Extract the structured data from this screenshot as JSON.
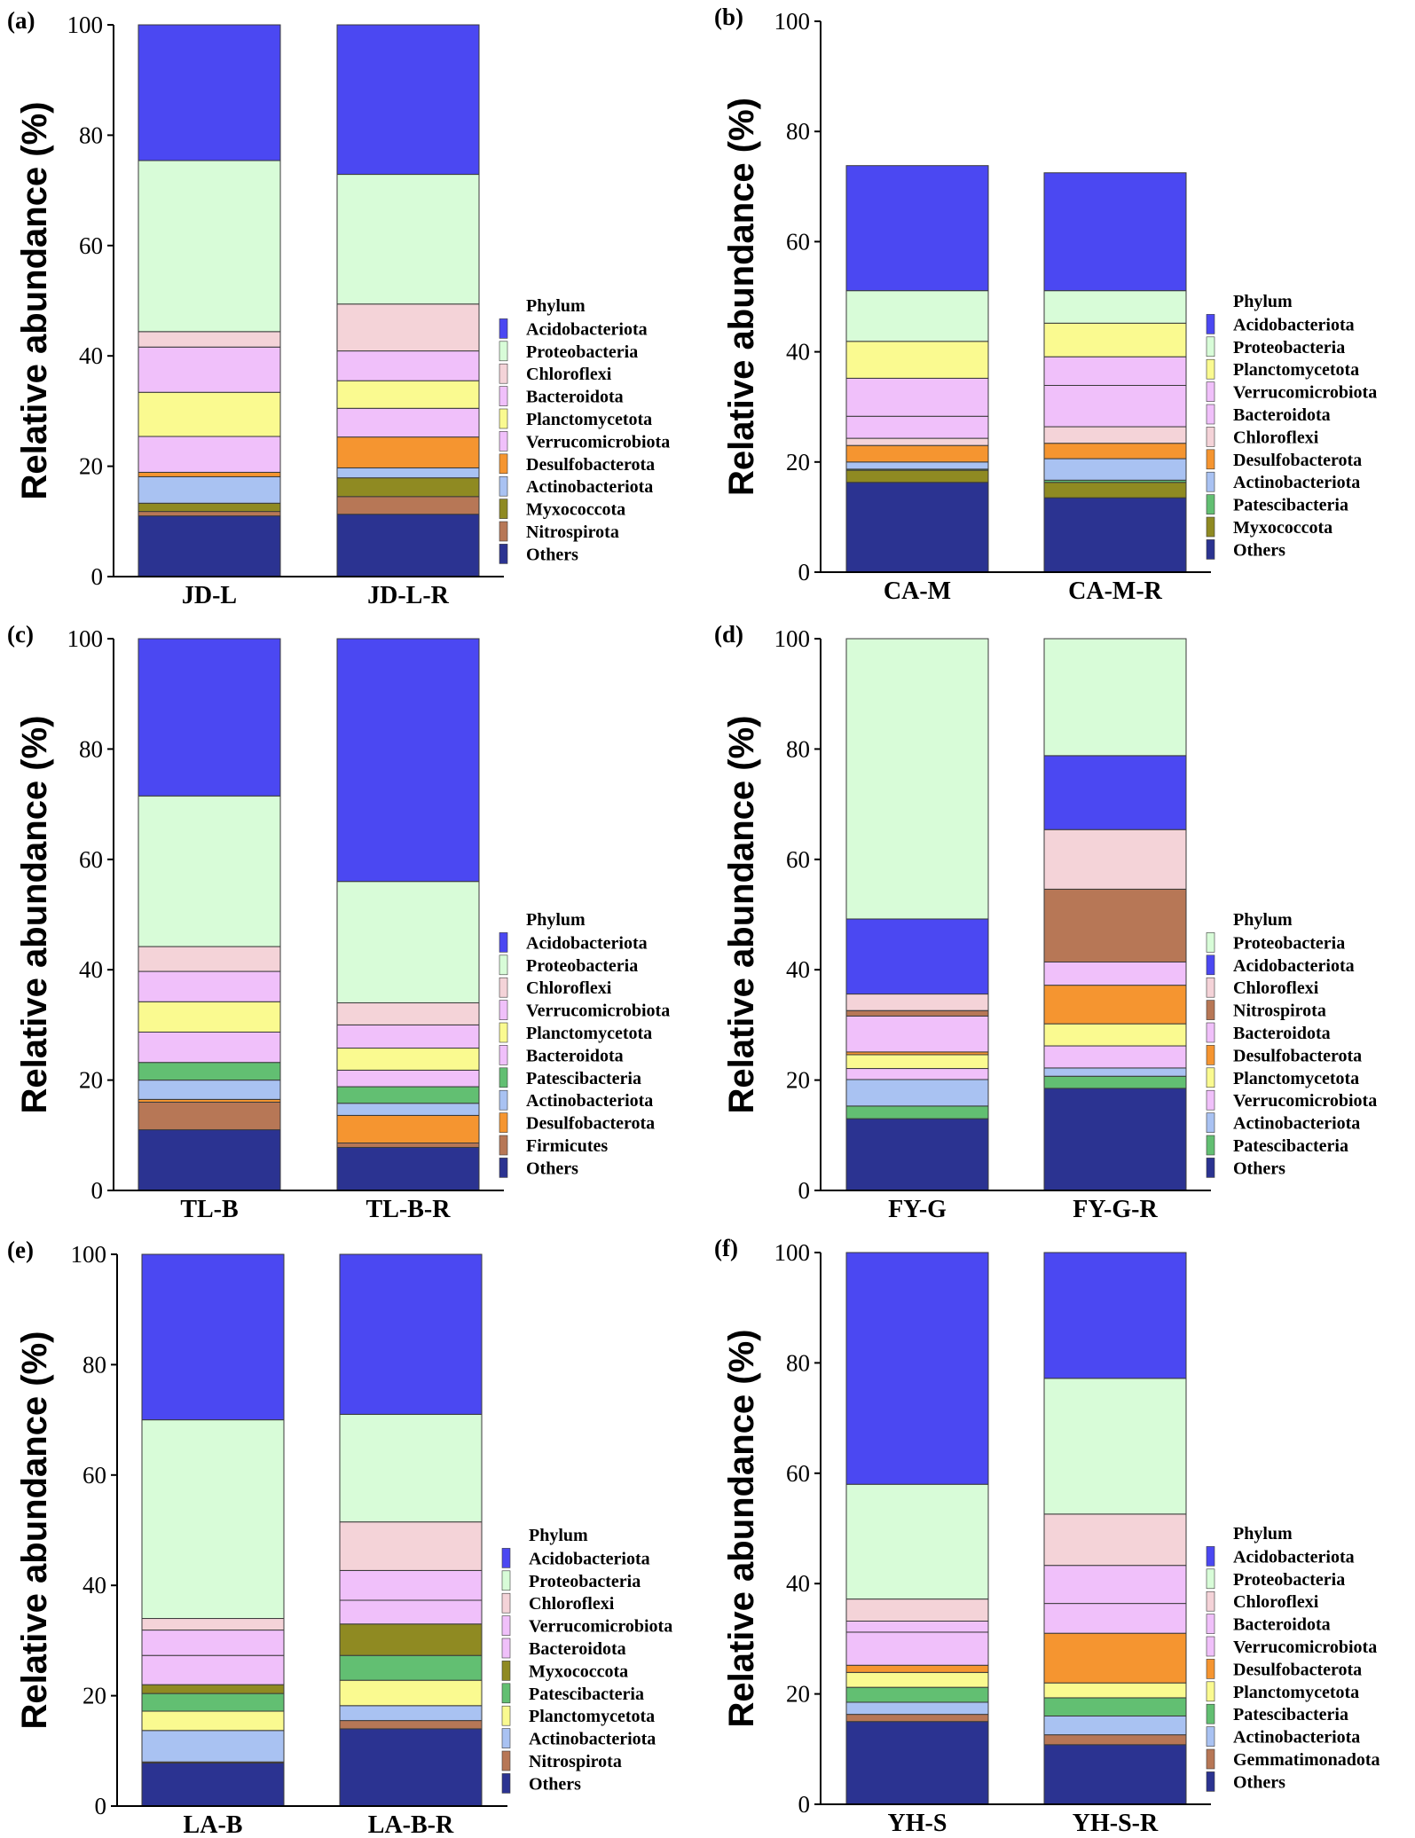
{
  "colors": {
    "Acidobacteriota": "#4b48f2",
    "Proteobacteria": "#d8fcd8",
    "Chloroflexi": "#f4d3d8",
    "Bacteroidota": "#f0c0fa",
    "Verrucomicrobiota": "#f0c0fa",
    "Planctomycetota": "#fafa90",
    "Myxococcota": "#8f8a22",
    "Desulfobacterota": "#f59530",
    "Patescibacteria": "#62bf72",
    "Actinobacteriota": "#a9c2f2",
    "Nitrospirota": "#b77756",
    "Firmicutes": "#b77756",
    "Gemmatimonadota": "#b77756",
    "Others": "#2b3391"
  },
  "chart_data": [
    {
      "type": "bar",
      "panel_label": "(a)",
      "ylabel": "Relative abundance (%)",
      "ylim": [
        0,
        100
      ],
      "yticks": [
        "0",
        "20",
        "40",
        "60",
        "80",
        "100"
      ],
      "categories": [
        "JD-L",
        "JD-L-R"
      ],
      "legend_title": "Phylum",
      "series": [
        {
          "name": "Others",
          "values": [
            11.0,
            11.3
          ]
        },
        {
          "name": "Nitrospirota",
          "values": [
            0.8,
            3.2
          ]
        },
        {
          "name": "Myxococcota",
          "values": [
            1.5,
            3.4
          ]
        },
        {
          "name": "Actinobacteriota",
          "values": [
            4.8,
            1.8
          ]
        },
        {
          "name": "Desulfobacterota",
          "values": [
            0.8,
            5.6
          ]
        },
        {
          "name": "Verrucomicrobiota",
          "values": [
            6.5,
            5.2
          ]
        },
        {
          "name": "Planctomycetota",
          "values": [
            8.0,
            5.0
          ]
        },
        {
          "name": "Bacteroidota",
          "values": [
            8.2,
            5.4
          ]
        },
        {
          "name": "Chloroflexi",
          "values": [
            2.8,
            8.5
          ]
        },
        {
          "name": "Proteobacteria",
          "values": [
            31.0,
            23.5
          ]
        },
        {
          "name": "Acidobacteriota",
          "values": [
            24.6,
            27.1
          ]
        }
      ]
    },
    {
      "type": "bar",
      "panel_label": "(b)",
      "ylabel": "Relative abundance (%)",
      "ylim": [
        0,
        100
      ],
      "yticks": [
        "0",
        "20",
        "40",
        "60",
        "80",
        "100"
      ],
      "categories": [
        "CA-M",
        "CA-M-R"
      ],
      "legend_title": "Phylum",
      "series": [
        {
          "name": "Others",
          "values": [
            16.3,
            13.5
          ]
        },
        {
          "name": "Myxococcota",
          "values": [
            2.2,
            2.8
          ]
        },
        {
          "name": "Patescibacteria",
          "values": [
            0.2,
            0.4
          ]
        },
        {
          "name": "Actinobacteriota",
          "values": [
            1.3,
            3.9
          ]
        },
        {
          "name": "Desulfobacterota",
          "values": [
            3.0,
            2.8
          ]
        },
        {
          "name": "Chloroflexi",
          "values": [
            1.3,
            3.0
          ]
        },
        {
          "name": "Bacteroidota",
          "values": [
            4.0,
            7.5
          ]
        },
        {
          "name": "Verrucomicrobiota",
          "values": [
            6.9,
            5.2
          ]
        },
        {
          "name": "Planctomycetota",
          "values": [
            6.7,
            6.1
          ]
        },
        {
          "name": "Proteobacteria",
          "values": [
            9.2,
            5.9
          ]
        },
        {
          "name": "Acidobacteriota",
          "values": [
            22.7,
            21.4
          ]
        }
      ]
    },
    {
      "type": "bar",
      "panel_label": "(c)",
      "ylabel": "Relative abundance (%)",
      "ylim": [
        0,
        100
      ],
      "yticks": [
        "0",
        "20",
        "40",
        "60",
        "80",
        "100"
      ],
      "categories": [
        "TL-B",
        "TL-B-R"
      ],
      "legend_title": "Phylum",
      "series": [
        {
          "name": "Others",
          "values": [
            11.0,
            7.8
          ]
        },
        {
          "name": "Firmicutes",
          "values": [
            5.0,
            0.8
          ]
        },
        {
          "name": "Desulfobacterota",
          "values": [
            0.5,
            5.0
          ]
        },
        {
          "name": "Actinobacteriota",
          "values": [
            3.5,
            2.2
          ]
        },
        {
          "name": "Patescibacteria",
          "values": [
            3.2,
            3.0
          ]
        },
        {
          "name": "Bacteroidota",
          "values": [
            5.5,
            3.0
          ]
        },
        {
          "name": "Planctomycetota",
          "values": [
            5.5,
            4.0
          ]
        },
        {
          "name": "Verrucomicrobiota",
          "values": [
            5.5,
            4.2
          ]
        },
        {
          "name": "Chloroflexi",
          "values": [
            4.5,
            4.0
          ]
        },
        {
          "name": "Proteobacteria",
          "values": [
            27.3,
            22.0
          ]
        },
        {
          "name": "Acidobacteriota",
          "values": [
            28.5,
            44.0
          ]
        }
      ]
    },
    {
      "type": "bar",
      "panel_label": "(d)",
      "ylabel": "Relative abundance (%)",
      "ylim": [
        0,
        100
      ],
      "yticks": [
        "0",
        "20",
        "40",
        "60",
        "80",
        "100"
      ],
      "categories": [
        "FY-G",
        "FY-G-R"
      ],
      "legend_title": "Phylum",
      "series": [
        {
          "name": "Others",
          "values": [
            13.0,
            18.5
          ]
        },
        {
          "name": "Patescibacteria",
          "values": [
            2.3,
            2.2
          ]
        },
        {
          "name": "Actinobacteriota",
          "values": [
            4.8,
            1.5
          ]
        },
        {
          "name": "Verrucomicrobiota",
          "values": [
            2.0,
            4.0
          ]
        },
        {
          "name": "Planctomycetota",
          "values": [
            2.5,
            4.0
          ]
        },
        {
          "name": "Desulfobacterota",
          "values": [
            0.5,
            7.0
          ]
        },
        {
          "name": "Bacteroidota",
          "values": [
            6.5,
            4.2
          ]
        },
        {
          "name": "Nitrospirota",
          "values": [
            1.0,
            13.2
          ]
        },
        {
          "name": "Chloroflexi",
          "values": [
            3.0,
            10.8
          ]
        },
        {
          "name": "Acidobacteriota",
          "values": [
            13.6,
            13.4
          ]
        },
        {
          "name": "Proteobacteria",
          "values": [
            50.8,
            21.2
          ]
        }
      ]
    },
    {
      "type": "bar",
      "panel_label": "(e)",
      "ylabel": "Relative abundance (%)",
      "ylim": [
        0,
        100
      ],
      "yticks": [
        "0",
        "20",
        "40",
        "60",
        "80",
        "100"
      ],
      "categories": [
        "LA-B",
        "LA-B-R"
      ],
      "legend_title": "Phylum",
      "series": [
        {
          "name": "Others",
          "values": [
            7.8,
            14.0
          ]
        },
        {
          "name": "Nitrospirota",
          "values": [
            0.2,
            1.5
          ]
        },
        {
          "name": "Actinobacteriota",
          "values": [
            5.7,
            2.7
          ]
        },
        {
          "name": "Planctomycetota",
          "values": [
            3.5,
            4.6
          ]
        },
        {
          "name": "Patescibacteria",
          "values": [
            3.2,
            4.5
          ]
        },
        {
          "name": "Myxococcota",
          "values": [
            1.6,
            5.7
          ]
        },
        {
          "name": "Bacteroidota",
          "values": [
            5.3,
            4.3
          ]
        },
        {
          "name": "Verrucomicrobiota",
          "values": [
            4.6,
            5.4
          ]
        },
        {
          "name": "Chloroflexi",
          "values": [
            2.1,
            8.8
          ]
        },
        {
          "name": "Proteobacteria",
          "values": [
            36.0,
            19.5
          ]
        },
        {
          "name": "Acidobacteriota",
          "values": [
            30.0,
            29.0
          ]
        }
      ]
    },
    {
      "type": "bar",
      "panel_label": "(f)",
      "ylabel": "Relative abundance (%)",
      "ylim": [
        0,
        100
      ],
      "yticks": [
        "0",
        "20",
        "40",
        "60",
        "80",
        "100"
      ],
      "categories": [
        "YH-S",
        "YH-S-R"
      ],
      "legend_title": "Phylum",
      "series": [
        {
          "name": "Others",
          "values": [
            15.0,
            10.8
          ]
        },
        {
          "name": "Gemmatimonadota",
          "values": [
            1.3,
            1.8
          ]
        },
        {
          "name": "Actinobacteriota",
          "values": [
            2.2,
            3.4
          ]
        },
        {
          "name": "Patescibacteria",
          "values": [
            2.7,
            3.3
          ]
        },
        {
          "name": "Planctomycetota",
          "values": [
            2.7,
            2.7
          ]
        },
        {
          "name": "Desulfobacterota",
          "values": [
            1.3,
            9.0
          ]
        },
        {
          "name": "Verrucomicrobiota",
          "values": [
            6.0,
            5.4
          ]
        },
        {
          "name": "Bacteroidota",
          "values": [
            2.0,
            6.9
          ]
        },
        {
          "name": "Chloroflexi",
          "values": [
            4.0,
            9.3
          ]
        },
        {
          "name": "Proteobacteria",
          "values": [
            20.8,
            24.6
          ]
        },
        {
          "name": "Acidobacteriota",
          "values": [
            42.0,
            22.8
          ]
        }
      ]
    }
  ]
}
